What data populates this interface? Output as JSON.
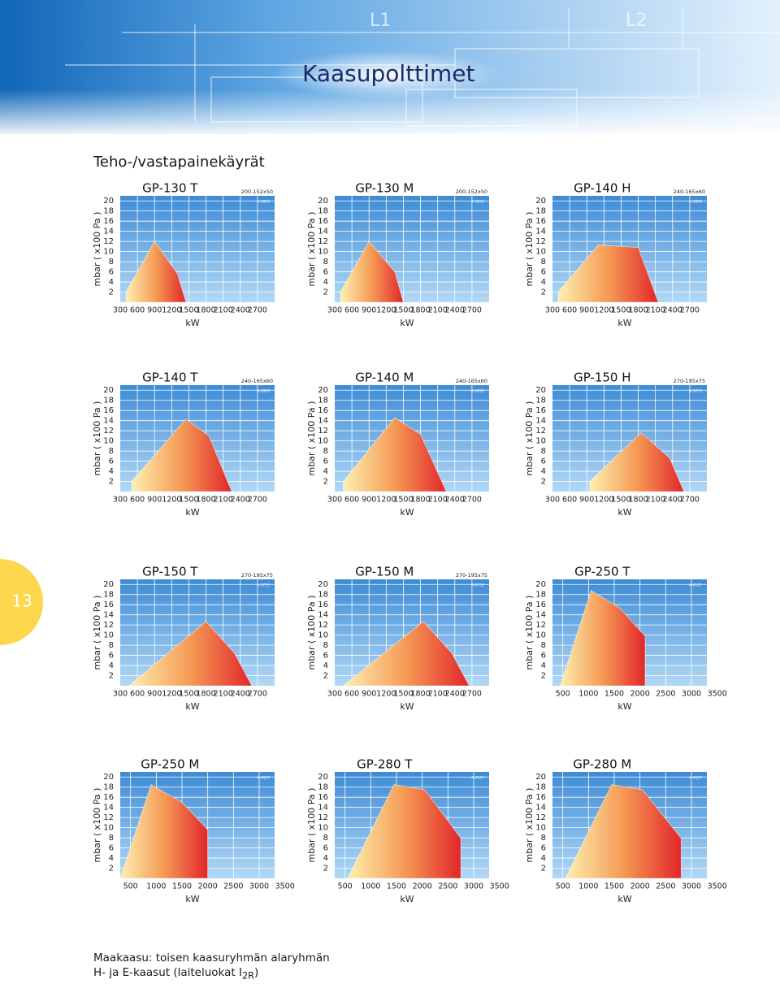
{
  "header": {
    "title": "Kaasupolttimet",
    "drawing_labels": [
      "L1",
      "L2"
    ]
  },
  "subtitle": "Teho-/vastapainekäyrät",
  "page_number": "13",
  "footnote": {
    "line1": "Maakaasu: toisen kaasuryhmän alaryhmän",
    "line2_main": "H- ja E-kaasut (laiteluokat I",
    "line2_sub": "2R",
    "line2_end": ")"
  },
  "chart_data": [
    {
      "type": "area",
      "title": "GP-130 T",
      "code": "200-152x50",
      "ref": "A-5834",
      "x_label": "kW",
      "y_label": "mbar ( x100 Pa )",
      "x": [
        400,
        400,
        900,
        1300,
        1450
      ],
      "values": [
        0,
        2,
        12,
        5.6,
        0
      ],
      "xlim": [
        300,
        3000
      ],
      "ylim": [
        0,
        21
      ],
      "xticks": [
        300,
        600,
        900,
        1200,
        1500,
        1800,
        2100,
        2400,
        2700
      ],
      "yticks": [
        2,
        4,
        6,
        8,
        10,
        12,
        14,
        16,
        18,
        20
      ],
      "grid": true,
      "colors": [
        "#fdf0b0",
        "#f59a55",
        "#e2262a"
      ]
    },
    {
      "type": "area",
      "title": "GP-130 M",
      "code": "200-152x50",
      "ref": "A-5835",
      "x_label": "kW",
      "y_label": "mbar ( x100 Pa )",
      "x": [
        400,
        400,
        900,
        1350,
        1500
      ],
      "values": [
        0,
        2,
        12,
        6,
        0
      ],
      "xlim": [
        300,
        3000
      ],
      "ylim": [
        0,
        21
      ],
      "xticks": [
        300,
        600,
        900,
        1200,
        1500,
        1800,
        2100,
        2400,
        2700
      ],
      "yticks": [
        2,
        4,
        6,
        8,
        10,
        12,
        14,
        16,
        18,
        20
      ],
      "grid": true,
      "colors": [
        "#fdf0b0",
        "#f59a55",
        "#e2262a"
      ]
    },
    {
      "type": "area",
      "title": "GP-140 H",
      "code": "240-165x60",
      "ref": "A-5880",
      "x_label": "kW",
      "y_label": "mbar ( x100 Pa )",
      "x": [
        400,
        400,
        1100,
        1800,
        2150
      ],
      "values": [
        0,
        2,
        11.3,
        10.8,
        0
      ],
      "xlim": [
        300,
        3000
      ],
      "ylim": [
        0,
        21
      ],
      "xticks": [
        300,
        600,
        900,
        1200,
        1500,
        1800,
        2100,
        2400,
        2700
      ],
      "yticks": [
        2,
        4,
        6,
        8,
        10,
        12,
        14,
        16,
        18,
        20
      ],
      "grid": true,
      "colors": [
        "#fdf0b0",
        "#f59a55",
        "#e2262a"
      ]
    },
    {
      "type": "area",
      "title": "GP-140 T",
      "code": "240-165x60",
      "ref": "A-5828",
      "x_label": "kW",
      "y_label": "mbar ( x100 Pa )",
      "x": [
        500,
        500,
        1450,
        1850,
        2250
      ],
      "values": [
        0,
        2,
        14.3,
        11,
        0
      ],
      "xlim": [
        300,
        3000
      ],
      "ylim": [
        0,
        21
      ],
      "xticks": [
        300,
        600,
        900,
        1200,
        1500,
        1800,
        2100,
        2400,
        2700
      ],
      "yticks": [
        2,
        4,
        6,
        8,
        10,
        12,
        14,
        16,
        18,
        20
      ],
      "grid": true,
      "colors": [
        "#fdf0b0",
        "#f59a55",
        "#e2262a"
      ]
    },
    {
      "type": "area",
      "title": "GP-140 M",
      "code": "240-165x60",
      "ref": "A-5828",
      "x_label": "kW",
      "y_label": "mbar ( x100 Pa )",
      "x": [
        450,
        450,
        1350,
        1800,
        2250
      ],
      "values": [
        0,
        2,
        14.6,
        11.3,
        0
      ],
      "xlim": [
        300,
        3000
      ],
      "ylim": [
        0,
        21
      ],
      "xticks": [
        300,
        600,
        900,
        1200,
        1500,
        1800,
        2100,
        2400,
        2700
      ],
      "yticks": [
        2,
        4,
        6,
        8,
        10,
        12,
        14,
        16,
        18,
        20
      ],
      "grid": true,
      "colors": [
        "#fdf0b0",
        "#f59a55",
        "#e2262a"
      ]
    },
    {
      "type": "area",
      "title": "GP-150 H",
      "code": "270-195x75",
      "ref": "A-5875",
      "x_label": "kW",
      "y_label": "mbar ( x100 Pa )",
      "x": [
        950,
        950,
        1850,
        2350,
        2600
      ],
      "values": [
        0,
        2,
        11.6,
        6.6,
        0
      ],
      "xlim": [
        300,
        3000
      ],
      "ylim": [
        0,
        21
      ],
      "xticks": [
        300,
        600,
        900,
        1200,
        1500,
        1800,
        2100,
        2400,
        2700
      ],
      "yticks": [
        2,
        4,
        6,
        8,
        10,
        12,
        14,
        16,
        18,
        20
      ],
      "grid": true,
      "colors": [
        "#fdf0b0",
        "#f59a55",
        "#e2262a"
      ]
    },
    {
      "type": "area",
      "title": "GP-150 T",
      "code": "270-195x75",
      "ref": "A-5753",
      "x_label": "kW",
      "y_label": "mbar ( x100 Pa )",
      "x": [
        450,
        1800,
        2300,
        2600
      ],
      "values": [
        0,
        12.7,
        6.4,
        0
      ],
      "xlim": [
        300,
        3000
      ],
      "ylim": [
        0,
        21
      ],
      "xticks": [
        300,
        600,
        900,
        1200,
        1500,
        1800,
        2100,
        2400,
        2700
      ],
      "yticks": [
        2,
        4,
        6,
        8,
        10,
        12,
        14,
        16,
        18,
        20
      ],
      "grid": true,
      "colors": [
        "#fdf0b0",
        "#f59a55",
        "#e2262a"
      ]
    },
    {
      "type": "area",
      "title": "GP-150 M",
      "code": "270-195x75",
      "ref": "A-5753",
      "x_label": "kW",
      "y_label": "mbar ( x100 Pa )",
      "x": [
        450,
        1850,
        2350,
        2650
      ],
      "values": [
        0,
        12.7,
        6.4,
        0
      ],
      "xlim": [
        300,
        3000
      ],
      "ylim": [
        0,
        21
      ],
      "xticks": [
        300,
        600,
        900,
        1200,
        1500,
        1800,
        2100,
        2400,
        2700
      ],
      "yticks": [
        2,
        4,
        6,
        8,
        10,
        12,
        14,
        16,
        18,
        20
      ],
      "grid": true,
      "colors": [
        "#fdf0b0",
        "#f59a55",
        "#e2262a"
      ]
    },
    {
      "type": "area",
      "title": "GP-250 T",
      "ref": "A-4527",
      "x_label": "kW",
      "y_label": "mbar ( x100 Pa )",
      "x": [
        450,
        1050,
        1600,
        2100,
        2100
      ],
      "values": [
        0,
        18.8,
        15.4,
        9.8,
        0
      ],
      "xlim": [
        300,
        3300
      ],
      "ylim": [
        0,
        21
      ],
      "xticks": [
        500,
        1000,
        1500,
        2000,
        2500,
        3000,
        3500
      ],
      "yticks": [
        2,
        4,
        6,
        8,
        10,
        12,
        14,
        16,
        18,
        20
      ],
      "grid": true,
      "colors": [
        "#fdf0b0",
        "#f59a55",
        "#e2262a"
      ]
    },
    {
      "type": "area",
      "title": "GP-250 M",
      "ref": "A-4527",
      "x_label": "kW",
      "y_label": "mbar ( x100 Pa )",
      "x": [
        300,
        900,
        1500,
        2000,
        2000
      ],
      "values": [
        0,
        18.5,
        15,
        9.6,
        0
      ],
      "xlim": [
        300,
        3300
      ],
      "ylim": [
        0,
        21
      ],
      "xticks": [
        500,
        1000,
        1500,
        2000,
        2500,
        3000,
        3500
      ],
      "yticks": [
        2,
        4,
        6,
        8,
        10,
        12,
        14,
        16,
        18,
        20
      ],
      "grid": true,
      "colors": [
        "#fdf0b0",
        "#f59a55",
        "#e2262a"
      ]
    },
    {
      "type": "area",
      "title": "GP-280 T",
      "ref": "A-4527",
      "x_label": "kW",
      "y_label": "mbar ( x100 Pa )",
      "x": [
        550,
        1450,
        2050,
        2750,
        2750
      ],
      "values": [
        0,
        18.5,
        17.5,
        7.9,
        0
      ],
      "xlim": [
        300,
        3300
      ],
      "ylim": [
        0,
        21
      ],
      "xticks": [
        500,
        1000,
        1500,
        2000,
        2500,
        3000,
        3500
      ],
      "yticks": [
        2,
        4,
        6,
        8,
        10,
        12,
        14,
        16,
        18,
        20
      ],
      "grid": true,
      "colors": [
        "#fdf0b0",
        "#f59a55",
        "#e2262a"
      ]
    },
    {
      "type": "area",
      "title": "GP-280 M",
      "ref": "A-4527",
      "x_label": "kW",
      "y_label": "mbar ( x100 Pa )",
      "x": [
        550,
        1450,
        2050,
        2800,
        2800
      ],
      "values": [
        0,
        18.5,
        17.5,
        7.9,
        0
      ],
      "xlim": [
        300,
        3300
      ],
      "ylim": [
        0,
        21
      ],
      "xticks": [
        500,
        1000,
        1500,
        2000,
        2500,
        3000,
        3500
      ],
      "yticks": [
        2,
        4,
        6,
        8,
        10,
        12,
        14,
        16,
        18,
        20
      ],
      "grid": true,
      "colors": [
        "#fdf0b0",
        "#f59a55",
        "#e2262a"
      ]
    }
  ]
}
